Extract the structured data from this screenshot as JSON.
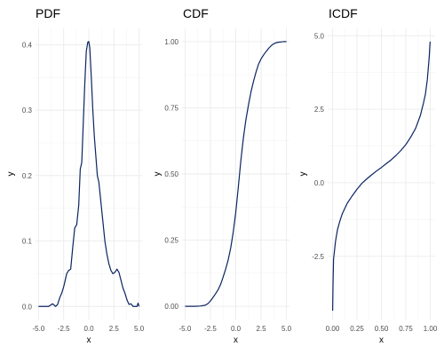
{
  "chart_data": [
    {
      "type": "line",
      "title": "PDF",
      "xlabel": "x",
      "ylabel": "y",
      "xlim": [
        -5.3,
        5.3
      ],
      "ylim": [
        -0.02,
        0.425
      ],
      "xticks": [
        -5,
        -2.5,
        0,
        2.5,
        5
      ],
      "xtick_labels": [
        "-5.0",
        "-2.5",
        "0.0",
        "2.5",
        "5.0"
      ],
      "yticks": [
        0,
        0.1,
        0.2,
        0.3,
        0.4
      ],
      "ytick_labels": [
        "0.0",
        "0.1",
        "0.2",
        "0.3",
        "0.4"
      ],
      "grid": true,
      "series": [
        {
          "color": "#0c2462",
          "x": [
            -5.0,
            -4.5,
            -4.0,
            -3.6,
            -3.3,
            -3.1,
            -2.9,
            -2.7,
            -2.5,
            -2.3,
            -2.2,
            -2.0,
            -1.8,
            -1.6,
            -1.4,
            -1.2,
            -1.0,
            -0.85,
            -0.7,
            -0.55,
            -0.4,
            -0.25,
            -0.1,
            0.0,
            0.1,
            0.25,
            0.4,
            0.55,
            0.7,
            0.85,
            1.0,
            1.2,
            1.4,
            1.6,
            1.8,
            2.0,
            2.2,
            2.4,
            2.6,
            2.8,
            3.0,
            3.2,
            3.4,
            3.6,
            3.8,
            4.0,
            4.2,
            4.4,
            4.6,
            4.8,
            4.9,
            5.0
          ],
          "y": [
            0.0,
            0.0,
            0.0,
            0.004,
            0.0,
            0.003,
            0.013,
            0.02,
            0.03,
            0.043,
            0.05,
            0.055,
            0.057,
            0.09,
            0.12,
            0.125,
            0.155,
            0.21,
            0.22,
            0.28,
            0.34,
            0.39,
            0.404,
            0.405,
            0.395,
            0.35,
            0.3,
            0.26,
            0.23,
            0.2,
            0.19,
            0.16,
            0.13,
            0.1,
            0.08,
            0.065,
            0.055,
            0.05,
            0.052,
            0.057,
            0.052,
            0.04,
            0.028,
            0.02,
            0.01,
            0.003,
            0.004,
            0.0,
            0.0,
            0.0,
            0.005,
            0.0
          ]
        }
      ]
    },
    {
      "type": "line",
      "title": "CDF",
      "xlabel": "x",
      "ylabel": "y",
      "xlim": [
        -5.3,
        5.3
      ],
      "ylim": [
        -0.05,
        1.05
      ],
      "xticks": [
        -5,
        -2.5,
        0,
        2.5,
        5
      ],
      "xtick_labels": [
        "-5.0",
        "-2.5",
        "0.0",
        "2.5",
        "5.0"
      ],
      "yticks": [
        0,
        0.25,
        0.5,
        0.75,
        1.0
      ],
      "ytick_labels": [
        "0.00",
        "0.25",
        "0.50",
        "0.75",
        "1.00"
      ],
      "grid": true,
      "series": [
        {
          "color": "#0c2462",
          "x": [
            -5.0,
            -4.0,
            -3.5,
            -3.0,
            -2.75,
            -2.5,
            -2.25,
            -2.0,
            -1.75,
            -1.5,
            -1.25,
            -1.0,
            -0.75,
            -0.5,
            -0.25,
            0.0,
            0.25,
            0.5,
            0.75,
            1.0,
            1.25,
            1.5,
            1.75,
            2.0,
            2.25,
            2.5,
            2.75,
            3.0,
            3.25,
            3.5,
            3.75,
            4.0,
            4.25,
            4.5,
            4.75,
            5.0
          ],
          "y": [
            0.0,
            0.0,
            0.001,
            0.004,
            0.01,
            0.02,
            0.033,
            0.047,
            0.062,
            0.082,
            0.11,
            0.14,
            0.175,
            0.22,
            0.28,
            0.355,
            0.45,
            0.55,
            0.635,
            0.705,
            0.76,
            0.81,
            0.85,
            0.885,
            0.915,
            0.935,
            0.95,
            0.963,
            0.975,
            0.985,
            0.992,
            0.996,
            0.998,
            0.999,
            1.0,
            1.0
          ]
        }
      ]
    },
    {
      "type": "line",
      "title": "ICDF",
      "xlabel": "x",
      "ylabel": "y",
      "xlim": [
        -0.05,
        1.05
      ],
      "ylim": [
        -4.65,
        5.25
      ],
      "xticks": [
        0,
        0.25,
        0.5,
        0.75,
        1.0
      ],
      "xtick_labels": [
        "0.00",
        "0.25",
        "0.50",
        "0.75",
        "1.00"
      ],
      "yticks": [
        -2.5,
        0,
        2.5,
        5.0
      ],
      "ytick_labels": [
        "-2.5",
        "0.0",
        "2.5",
        "5.0"
      ],
      "grid": true,
      "series": [
        {
          "color": "#0c2462",
          "x": [
            0.001,
            0.005,
            0.01,
            0.02,
            0.03,
            0.05,
            0.075,
            0.1,
            0.15,
            0.2,
            0.25,
            0.3,
            0.35,
            0.4,
            0.45,
            0.5,
            0.55,
            0.6,
            0.65,
            0.7,
            0.75,
            0.8,
            0.85,
            0.9,
            0.93,
            0.95,
            0.97,
            0.98,
            0.99,
            0.995,
            0.999
          ],
          "y": [
            -4.35,
            -3.4,
            -2.6,
            -2.3,
            -2.0,
            -1.6,
            -1.3,
            -1.05,
            -0.7,
            -0.45,
            -0.22,
            -0.02,
            0.13,
            0.27,
            0.4,
            0.52,
            0.65,
            0.78,
            0.93,
            1.1,
            1.3,
            1.55,
            1.85,
            2.3,
            2.7,
            3.0,
            3.5,
            3.9,
            4.3,
            4.6,
            4.8
          ]
        }
      ]
    }
  ]
}
